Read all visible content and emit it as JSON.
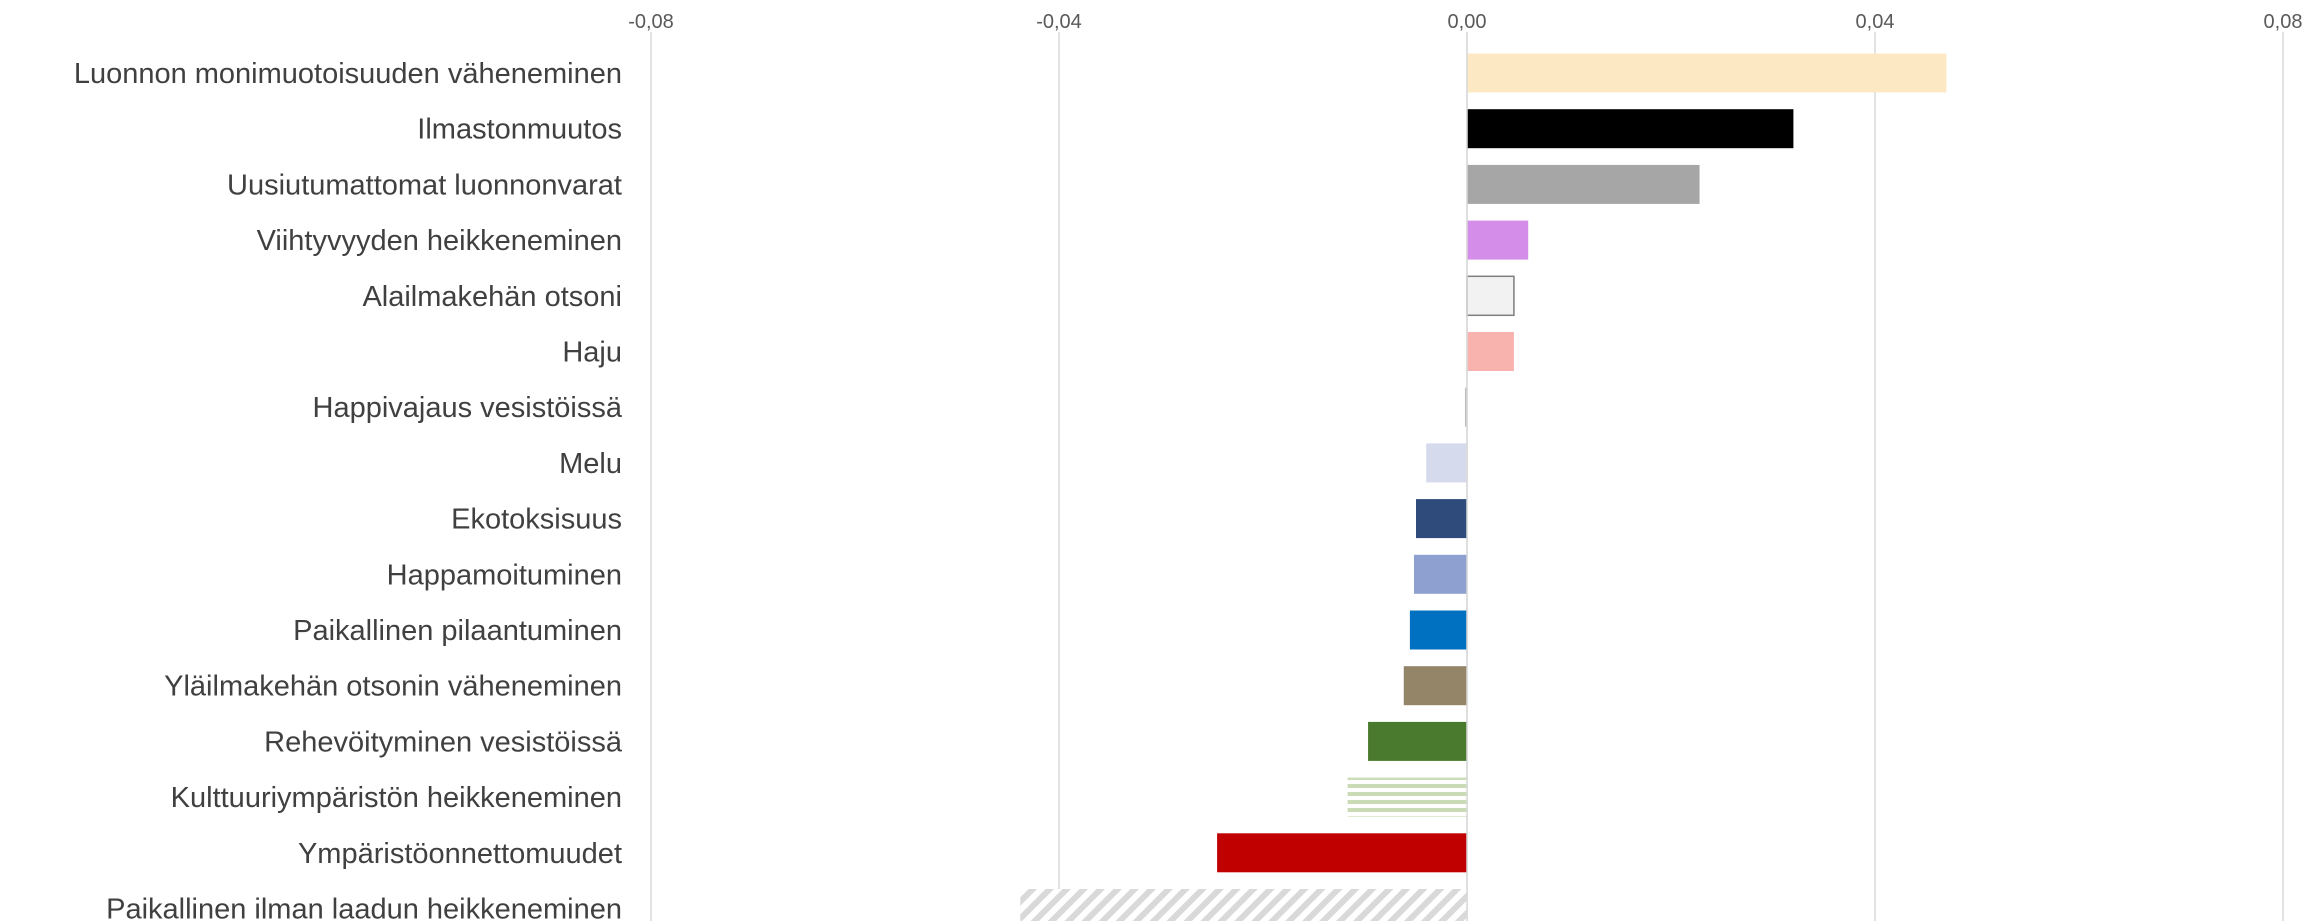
{
  "chart_data": {
    "type": "bar",
    "orientation": "horizontal",
    "xlim": [
      -0.08,
      0.08
    ],
    "x_ticks": [
      "-0,08",
      "-0,04",
      "0,00",
      "0,04",
      "0,08"
    ],
    "x_tick_values": [
      -0.08,
      -0.04,
      0.0,
      0.04,
      0.08
    ],
    "grid": true,
    "legend": "none",
    "categories": [
      "Luonnon monimuotoisuuden väheneminen",
      "Ilmastonmuutos",
      "Uusiutumattomat luonnonvarat",
      "Viihtyvyyden heikkeneminen",
      "Alailmakehän otsoni",
      "Haju",
      "Happivajaus vesistöissä",
      "Melu",
      "Ekotoksisuus",
      "Happamoituminen",
      "Paikallinen pilaantuminen",
      "Yläilmakehän otsonin väheneminen",
      "Rehevöityminen vesistöissä",
      "Kulttuuriympäristön heikkeneminen",
      "Ympäristöonnettomuudet",
      "Paikallinen ilman laadun heikkeneminen"
    ],
    "values": [
      0.047,
      0.032,
      0.0228,
      0.006,
      0.0046,
      0.0046,
      -0.0002,
      -0.004,
      -0.005,
      -0.0052,
      -0.0056,
      -0.0062,
      -0.0097,
      -0.0117,
      -0.0245,
      -0.0438
    ],
    "colors": [
      "#FCE9C4",
      "#000000",
      "#A6A6A6",
      "#D48EEA",
      "#F2F2F2",
      "#F9B3AE",
      "#BFBFBF",
      "#D5DBEC",
      "#2F4B7C",
      "#8EA0D0",
      "#0070C0",
      "#948468",
      "#4A7A2E",
      "#C9DCB5",
      "#C00000",
      "#D9D9D9"
    ],
    "patterns": [
      "solid",
      "solid",
      "solid",
      "solid",
      "outline",
      "solid",
      "solid",
      "solid",
      "solid",
      "solid",
      "solid",
      "solid",
      "solid",
      "hstripes",
      "solid",
      "diagonal"
    ]
  }
}
